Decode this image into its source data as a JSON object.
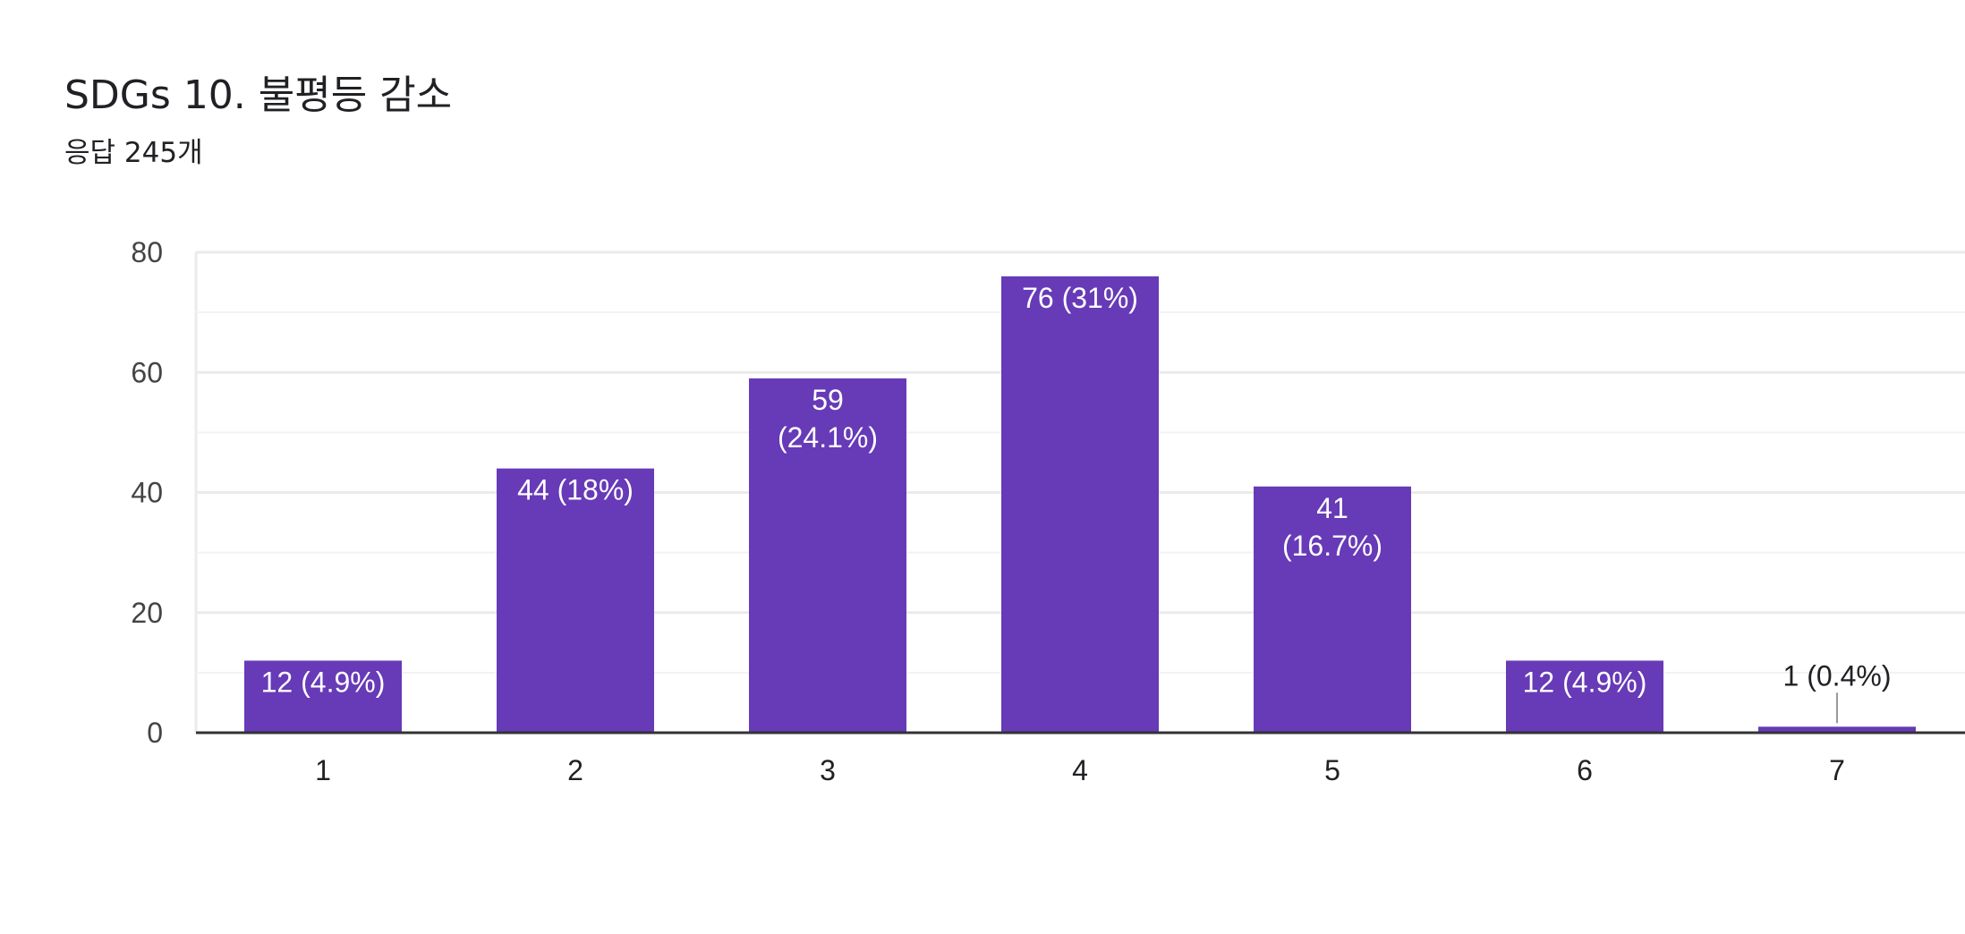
{
  "header": {
    "title": "SDGs 10. 불평등 감소",
    "subtitle": "응답 245개"
  },
  "colors": {
    "bar": "#673ab7",
    "label_inside": "#ffffff",
    "label_outside": "#202124",
    "tick_label": "#444444",
    "grid": "#ebebeb",
    "minor_grid": "#f3f3f3",
    "axis": "#333333"
  },
  "chart_data": {
    "type": "bar",
    "title": "SDGs 10. 불평등 감소",
    "subtitle": "응답 245개",
    "categories": [
      "1",
      "2",
      "3",
      "4",
      "5",
      "6",
      "7"
    ],
    "values": [
      12,
      44,
      59,
      76,
      41,
      12,
      1
    ],
    "data_labels": [
      [
        "12 (4.9%)"
      ],
      [
        "44 (18%)"
      ],
      [
        "59",
        "(24.1%)"
      ],
      [
        "76 (31%)"
      ],
      [
        "41",
        "(16.7%)"
      ],
      [
        "12 (4.9%)"
      ],
      [
        "1 (0.4%)"
      ]
    ],
    "yticks": [
      "0",
      "20",
      "40",
      "60",
      "80"
    ],
    "ylim": [
      0,
      80
    ],
    "xlabel": "",
    "ylabel": "",
    "grid": true
  }
}
